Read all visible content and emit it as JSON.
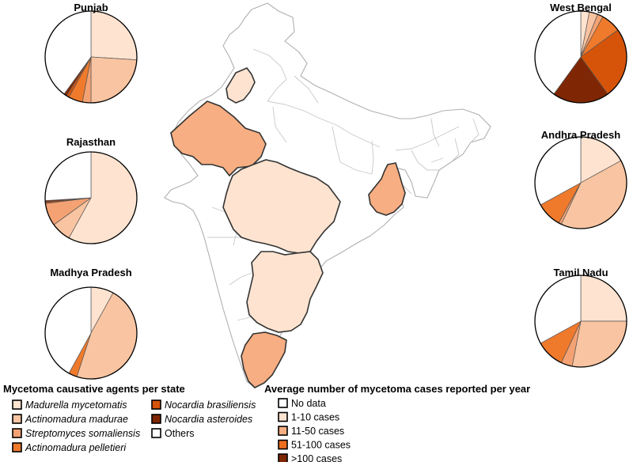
{
  "colors": {
    "madurella": "#fde3d0",
    "actinomadura_madurae": "#f9c4a1",
    "streptomyces": "#f4a273",
    "pelletieri": "#ef7a2c",
    "brasiliensis": "#d65409",
    "asteroides": "#7f2704",
    "others": "#ffffff",
    "map_no_data": "#ffffff",
    "map_1_10": "#fde3d0",
    "map_11_50": "#f7ae82",
    "map_51_100": "#ef6e1f",
    "map_over_100": "#7f2704"
  },
  "map": {
    "states": [
      {
        "name": "Punjab",
        "bin": "1-10"
      },
      {
        "name": "Rajasthan",
        "bin": "11-50"
      },
      {
        "name": "Madhya Pradesh",
        "bin": "1-10"
      },
      {
        "name": "West Bengal",
        "bin": "11-50"
      },
      {
        "name": "Andhra Pradesh",
        "bin": "1-10"
      },
      {
        "name": "Tamil Nadu",
        "bin": "11-50"
      }
    ]
  },
  "chart_data": [
    {
      "type": "pie",
      "title": "Punjab",
      "labels": [
        "Madurella mycetomatis",
        "Actinomadura madurae",
        "Streptomyces somaliensis",
        "Actinomadura pelletieri",
        "Nocardia brasiliensis",
        "Nocardia asteroides",
        "Others"
      ],
      "values": [
        26,
        24,
        3,
        5,
        1,
        1,
        40
      ]
    },
    {
      "type": "pie",
      "title": "West Bengal",
      "labels": [
        "Madurella mycetomatis",
        "Actinomadura madurae",
        "Streptomyces somaliensis",
        "Actinomadura pelletieri",
        "Nocardia brasiliensis",
        "Nocardia asteroides",
        "Others"
      ],
      "values": [
        3,
        3,
        2,
        7,
        25,
        20,
        40
      ]
    },
    {
      "type": "pie",
      "title": "Rajasthan",
      "labels": [
        "Madurella mycetomatis",
        "Actinomadura madurae",
        "Streptomyces somaliensis",
        "Actinomadura pelletieri",
        "Nocardia brasiliensis",
        "Nocardia asteroides",
        "Others"
      ],
      "values": [
        58,
        7,
        8,
        0,
        0.5,
        0.5,
        26
      ]
    },
    {
      "type": "pie",
      "title": "Andhra Pradesh",
      "labels": [
        "Madurella mycetomatis",
        "Actinomadura madurae",
        "Streptomyces somaliensis",
        "Actinomadura pelletieri",
        "Nocardia brasiliensis",
        "Nocardia asteroides",
        "Others"
      ],
      "values": [
        17,
        40,
        1,
        9,
        0,
        0,
        33
      ]
    },
    {
      "type": "pie",
      "title": "Madhya Pradesh",
      "labels": [
        "Madurella mycetomatis",
        "Actinomadura madurae",
        "Streptomyces somaliensis",
        "Actinomadura pelletieri",
        "Nocardia brasiliensis",
        "Nocardia asteroides",
        "Others"
      ],
      "values": [
        8,
        47,
        0,
        3,
        0,
        0,
        42
      ]
    },
    {
      "type": "pie",
      "title": "Tamil Nadu",
      "labels": [
        "Madurella mycetomatis",
        "Actinomadura madurae",
        "Streptomyces somaliensis",
        "Actinomadura pelletieri",
        "Nocardia brasiliensis",
        "Nocardia asteroides",
        "Others"
      ],
      "values": [
        25,
        28,
        4,
        10,
        0,
        0,
        33
      ]
    }
  ],
  "legend_agents": {
    "title": "Mycetoma causative agents per state",
    "items": [
      {
        "label": "Madurella mycetomatis",
        "color": "#fde3d0",
        "italic": true
      },
      {
        "label": "Actinomadura madurae",
        "color": "#f9c4a1",
        "italic": true
      },
      {
        "label": "Streptomyces somaliensis",
        "color": "#f4a273",
        "italic": true
      },
      {
        "label": "Actinomadura pelletieri",
        "color": "#ef7a2c",
        "italic": true
      },
      {
        "label": "Nocardia brasiliensis",
        "color": "#d65409",
        "italic": true
      },
      {
        "label": "Nocardia asteroides",
        "color": "#7f2704",
        "italic": true
      },
      {
        "label": "Others",
        "color": "#ffffff",
        "italic": false
      }
    ]
  },
  "legend_cases": {
    "title": "Average number of mycetoma cases reported per year",
    "items": [
      {
        "label": "No data",
        "color": "#ffffff"
      },
      {
        "label": "1-10 cases",
        "color": "#fde3d0"
      },
      {
        "label": "11-50 cases",
        "color": "#f7ae82"
      },
      {
        "label": "51-100 cases",
        "color": "#ef6e1f"
      },
      {
        "label": ">100 cases",
        "color": "#7f2704"
      }
    ]
  }
}
